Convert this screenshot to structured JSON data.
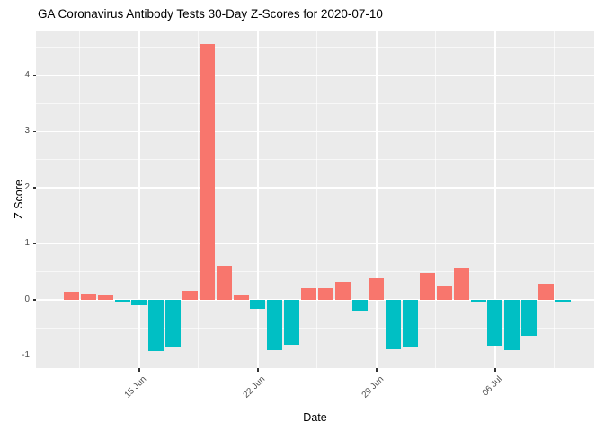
{
  "title": "GA Coronavirus Antibody Tests 30-Day Z-Scores for 2020-07-10",
  "chart_data": {
    "type": "bar",
    "title": "GA Coronavirus Antibody Tests 30-Day Z-Scores for 2020-07-10",
    "xlabel": "Date",
    "ylabel": "Z Score",
    "x": [
      "2020-06-11",
      "2020-06-12",
      "2020-06-13",
      "2020-06-14",
      "2020-06-15",
      "2020-06-16",
      "2020-06-17",
      "2020-06-18",
      "2020-06-19",
      "2020-06-20",
      "2020-06-21",
      "2020-06-22",
      "2020-06-23",
      "2020-06-24",
      "2020-06-25",
      "2020-06-26",
      "2020-06-27",
      "2020-06-28",
      "2020-06-29",
      "2020-06-30",
      "2020-07-01",
      "2020-07-02",
      "2020-07-03",
      "2020-07-04",
      "2020-07-05",
      "2020-07-06",
      "2020-07-07",
      "2020-07-08",
      "2020-07-09",
      "2020-07-10"
    ],
    "values": [
      0.14,
      0.11,
      0.1,
      -0.04,
      -0.1,
      -0.92,
      -0.85,
      0.16,
      4.56,
      0.6,
      0.08,
      -0.17,
      -0.9,
      -0.81,
      0.21,
      0.2,
      0.31,
      -0.2,
      0.38,
      -0.89,
      -0.83,
      0.47,
      0.23,
      0.55,
      -0.04,
      -0.82,
      -0.9,
      -0.64,
      0.28,
      -0.03
    ],
    "ylim": [
      -1.22,
      4.78
    ],
    "y_ticks": [
      -1,
      0,
      1,
      2,
      3,
      4
    ],
    "y_minor_ticks": [
      -0.5,
      0.5,
      1.5,
      2.5,
      3.5,
      4.5
    ],
    "x_ticks": [
      {
        "index": 4,
        "label": "15 Jun"
      },
      {
        "index": 11,
        "label": "22 Jun"
      },
      {
        "index": 18,
        "label": "29 Jun"
      },
      {
        "index": 25,
        "label": "06 Jul"
      }
    ],
    "x_minor_tick_indices": [
      0.5,
      7.5,
      14.5,
      21.5,
      28.5
    ],
    "grid": true,
    "legend_position": "none",
    "colors": {
      "positive": "#F8766D",
      "negative": "#00BFC4",
      "panel_bg": "#EBEBEB",
      "grid_major": "#FFFFFF",
      "grid_minor": "#FFFFFF",
      "tick_label": "#4D4D4D",
      "tick_mark": "#333333",
      "title_text": "#000000"
    }
  }
}
